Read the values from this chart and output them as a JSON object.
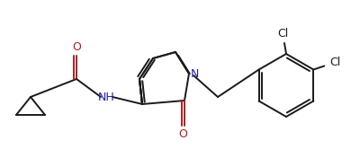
{
  "bg_color": "#ffffff",
  "line_color": "#1a1a1a",
  "N_color": "#2020aa",
  "O_color": "#aa2020",
  "lw": 1.4,
  "figsize": [
    4.0,
    1.76
  ],
  "dpi": 100,
  "xlim": [
    0,
    400
  ],
  "ylim": [
    0,
    176
  ]
}
